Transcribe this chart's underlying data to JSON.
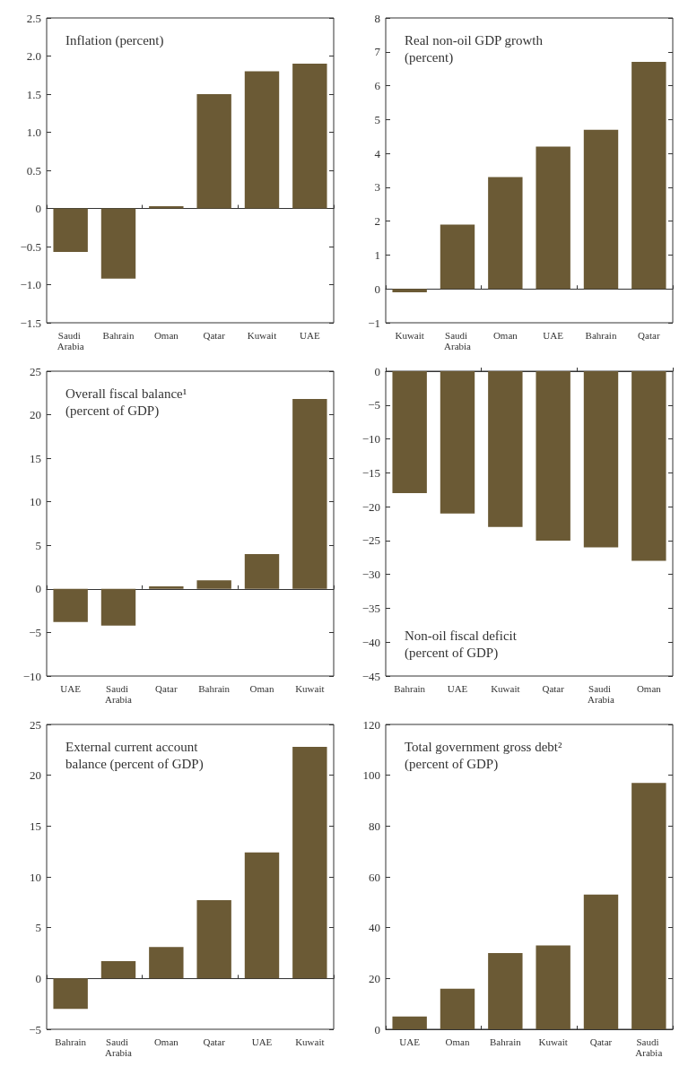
{
  "chart_data": [
    {
      "type": "bar",
      "title": "Inflation (percent)",
      "categories": [
        "Saudi Arabia",
        "Bahrain",
        "Oman",
        "Qatar",
        "Kuwait",
        "UAE"
      ],
      "values": [
        -0.57,
        -0.92,
        0.03,
        1.5,
        1.8,
        1.9
      ],
      "color": "#6b5a35",
      "ylim": [
        -1.5,
        2.5
      ],
      "yticks": [
        {
          "value": -1.5,
          "label": "−1.5"
        },
        {
          "value": -1,
          "label": "−1.0"
        },
        {
          "value": -0.5,
          "label": "−0.5"
        },
        0,
        {
          "value": 0.5,
          "label": "0.5"
        },
        {
          "value": 1,
          "label": "1.0"
        },
        {
          "value": 1.5,
          "label": "1.5"
        },
        {
          "value": 2,
          "label": "2.0"
        },
        {
          "value": 2.5,
          "label": "2.5"
        }
      ]
    },
    {
      "type": "bar",
      "title": "Real non-oil GDP growth\n(percent)",
      "categories": [
        "Kuwait",
        "Saudi Arabia",
        "Oman",
        "UAE",
        "Bahrain",
        "Qatar"
      ],
      "values": [
        -0.1,
        1.9,
        3.3,
        4.2,
        4.7,
        6.7
      ],
      "color": "#6b5a35",
      "ylim": [
        -1,
        8
      ],
      "yticks": [
        {
          "value": -1,
          "label": "−1"
        },
        0,
        1,
        2,
        3,
        4,
        5,
        6,
        7,
        8
      ]
    },
    {
      "type": "bar",
      "title": "Overall fiscal balance¹\n(percent of GDP)",
      "categories": [
        "UAE",
        "Saudi Arabia",
        "Qatar",
        "Bahrain",
        "Oman",
        "Kuwait"
      ],
      "values": [
        -3.8,
        -4.2,
        0.3,
        1.0,
        4.0,
        21.8
      ],
      "color": "#6b5a35",
      "ylim": [
        -10,
        25
      ],
      "yticks": [
        {
          "value": -10,
          "label": "−10"
        },
        {
          "value": -5,
          "label": "−5"
        },
        0,
        5,
        10,
        15,
        20,
        25
      ]
    },
    {
      "type": "bar",
      "title": "Non-oil fiscal deficit\n(percent of GDP)",
      "categories": [
        "Bahrain",
        "UAE",
        "Kuwait",
        "Qatar",
        "Saudi Arabia",
        "Oman"
      ],
      "values": [
        -18,
        -21,
        -23,
        -25,
        -26,
        -28
      ],
      "color": "#6b5a35",
      "ylim": [
        -45,
        0
      ],
      "yticks": [
        {
          "value": -45,
          "label": "−45"
        },
        {
          "value": -40,
          "label": "−40"
        },
        {
          "value": -35,
          "label": "−35"
        },
        {
          "value": -30,
          "label": "−30"
        },
        {
          "value": -25,
          "label": "−25"
        },
        {
          "value": -20,
          "label": "−20"
        },
        {
          "value": -15,
          "label": "−15"
        },
        {
          "value": -10,
          "label": "−10"
        },
        {
          "value": -5,
          "label": "−5"
        },
        0
      ]
    },
    {
      "type": "bar",
      "title": "External current account\nbalance (percent of GDP)",
      "categories": [
        "Bahrain",
        "Saudi Arabia",
        "Oman",
        "Qatar",
        "UAE",
        "Kuwait"
      ],
      "values": [
        -3.0,
        1.7,
        3.1,
        7.7,
        12.4,
        22.8
      ],
      "color": "#6b5a35",
      "ylim": [
        -5,
        25
      ],
      "yticks": [
        {
          "value": -5,
          "label": "−5"
        },
        0,
        5,
        10,
        15,
        20,
        25
      ]
    },
    {
      "type": "bar",
      "title": "Total government gross debt²\n(percent of GDP)",
      "categories": [
        "UAE",
        "Oman",
        "Bahrain",
        "Kuwait",
        "Qatar",
        "Saudi Arabia"
      ],
      "values": [
        5,
        16,
        30,
        33,
        53,
        97
      ],
      "color": "#6b5a35",
      "ylim": [
        0,
        120
      ],
      "yticks": [
        0,
        20,
        40,
        60,
        80,
        100,
        120
      ]
    }
  ]
}
